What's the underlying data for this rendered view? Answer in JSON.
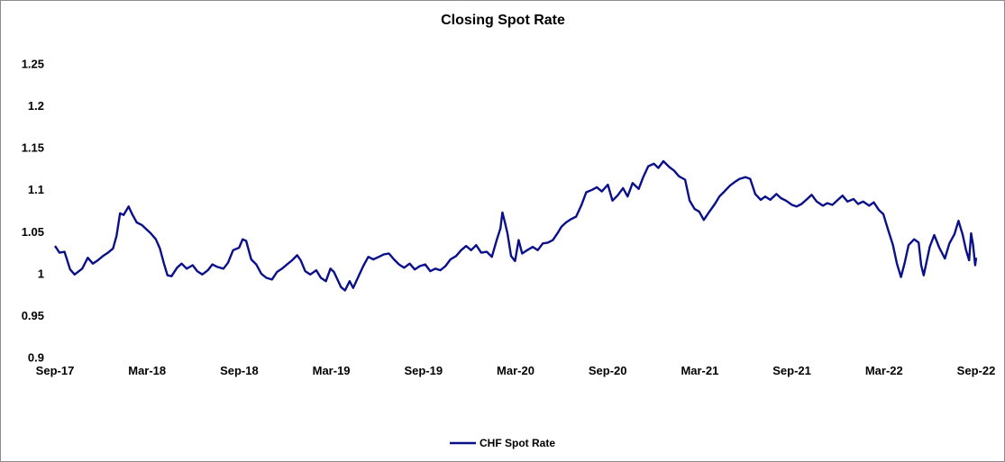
{
  "chart_data": {
    "type": "line",
    "title": "Closing Spot Rate",
    "xlabel": "",
    "ylabel": "",
    "ylim": [
      0.9,
      1.25
    ],
    "yticks": [
      "0.9",
      "0.95",
      "1",
      "1.05",
      "1.1",
      "1.15",
      "1.2",
      "1.25"
    ],
    "xticks": [
      "Sep-17",
      "Mar-18",
      "Sep-18",
      "Mar-19",
      "Sep-19",
      "Mar-20",
      "Sep-20",
      "Mar-21",
      "Sep-21",
      "Mar-22",
      "Sep-22"
    ],
    "xlim": [
      "2017-09-01",
      "2022-09-01"
    ],
    "legend": "bottom",
    "grid": false,
    "series": [
      {
        "name": "CHF Spot Rate",
        "color": "#0a0f8a",
        "points": [
          [
            "2017-09-01",
            1.033
          ],
          [
            "2017-09-10",
            1.025
          ],
          [
            "2017-09-20",
            1.026
          ],
          [
            "2017-10-01",
            1.005
          ],
          [
            "2017-10-10",
            0.999
          ],
          [
            "2017-10-25",
            1.006
          ],
          [
            "2017-11-05",
            1.019
          ],
          [
            "2017-11-15",
            1.012
          ],
          [
            "2017-11-25",
            1.016
          ],
          [
            "2017-12-05",
            1.021
          ],
          [
            "2017-12-15",
            1.025
          ],
          [
            "2017-12-25",
            1.03
          ],
          [
            "2018-01-01",
            1.045
          ],
          [
            "2018-01-08",
            1.072
          ],
          [
            "2018-01-15",
            1.07
          ],
          [
            "2018-01-25",
            1.08
          ],
          [
            "2018-02-01",
            1.071
          ],
          [
            "2018-02-10",
            1.061
          ],
          [
            "2018-02-20",
            1.058
          ],
          [
            "2018-03-01",
            1.053
          ],
          [
            "2018-03-10",
            1.048
          ],
          [
            "2018-03-20",
            1.041
          ],
          [
            "2018-03-28",
            1.03
          ],
          [
            "2018-04-05",
            1.012
          ],
          [
            "2018-04-12",
            0.998
          ],
          [
            "2018-04-20",
            0.997
          ],
          [
            "2018-05-01",
            1.007
          ],
          [
            "2018-05-10",
            1.012
          ],
          [
            "2018-05-20",
            1.006
          ],
          [
            "2018-06-01",
            1.01
          ],
          [
            "2018-06-10",
            1.003
          ],
          [
            "2018-06-20",
            0.999
          ],
          [
            "2018-07-01",
            1.004
          ],
          [
            "2018-07-10",
            1.011
          ],
          [
            "2018-07-20",
            1.008
          ],
          [
            "2018-08-01",
            1.006
          ],
          [
            "2018-08-10",
            1.013
          ],
          [
            "2018-08-20",
            1.028
          ],
          [
            "2018-09-01",
            1.031
          ],
          [
            "2018-09-08",
            1.041
          ],
          [
            "2018-09-15",
            1.039
          ],
          [
            "2018-09-25",
            1.017
          ],
          [
            "2018-10-05",
            1.011
          ],
          [
            "2018-10-15",
            1.0
          ],
          [
            "2018-10-25",
            0.995
          ],
          [
            "2018-11-05",
            0.993
          ],
          [
            "2018-11-15",
            1.002
          ],
          [
            "2018-11-25",
            1.006
          ],
          [
            "2018-12-05",
            1.011
          ],
          [
            "2018-12-15",
            1.016
          ],
          [
            "2018-12-25",
            1.022
          ],
          [
            "2019-01-01",
            1.016
          ],
          [
            "2019-01-10",
            1.003
          ],
          [
            "2019-01-20",
            0.999
          ],
          [
            "2019-02-01",
            1.004
          ],
          [
            "2019-02-10",
            0.995
          ],
          [
            "2019-02-20",
            0.991
          ],
          [
            "2019-03-01",
            1.006
          ],
          [
            "2019-03-08",
            1.002
          ],
          [
            "2019-03-15",
            0.993
          ],
          [
            "2019-03-22",
            0.984
          ],
          [
            "2019-03-30",
            0.98
          ],
          [
            "2019-04-08",
            0.991
          ],
          [
            "2019-04-15",
            0.983
          ],
          [
            "2019-04-25",
            0.996
          ],
          [
            "2019-05-05",
            1.009
          ],
          [
            "2019-05-15",
            1.02
          ],
          [
            "2019-05-25",
            1.017
          ],
          [
            "2019-06-05",
            1.02
          ],
          [
            "2019-06-15",
            1.023
          ],
          [
            "2019-06-25",
            1.024
          ],
          [
            "2019-07-05",
            1.017
          ],
          [
            "2019-07-15",
            1.011
          ],
          [
            "2019-07-25",
            1.007
          ],
          [
            "2019-08-05",
            1.012
          ],
          [
            "2019-08-15",
            1.005
          ],
          [
            "2019-08-25",
            1.009
          ],
          [
            "2019-09-05",
            1.011
          ],
          [
            "2019-09-15",
            1.003
          ],
          [
            "2019-09-25",
            1.006
          ],
          [
            "2019-10-05",
            1.004
          ],
          [
            "2019-10-15",
            1.009
          ],
          [
            "2019-10-25",
            1.017
          ],
          [
            "2019-11-05",
            1.021
          ],
          [
            "2019-11-15",
            1.028
          ],
          [
            "2019-11-25",
            1.033
          ],
          [
            "2019-12-05",
            1.028
          ],
          [
            "2019-12-15",
            1.034
          ],
          [
            "2019-12-25",
            1.025
          ],
          [
            "2020-01-05",
            1.026
          ],
          [
            "2020-01-15",
            1.02
          ],
          [
            "2020-01-25",
            1.041
          ],
          [
            "2020-02-01",
            1.054
          ],
          [
            "2020-02-05",
            1.073
          ],
          [
            "2020-02-10",
            1.061
          ],
          [
            "2020-02-15",
            1.048
          ],
          [
            "2020-02-22",
            1.021
          ],
          [
            "2020-03-01",
            1.015
          ],
          [
            "2020-03-08",
            1.04
          ],
          [
            "2020-03-15",
            1.024
          ],
          [
            "2020-03-25",
            1.028
          ],
          [
            "2020-04-05",
            1.032
          ],
          [
            "2020-04-15",
            1.028
          ],
          [
            "2020-04-25",
            1.036
          ],
          [
            "2020-05-05",
            1.037
          ],
          [
            "2020-05-15",
            1.04
          ],
          [
            "2020-05-25",
            1.049
          ],
          [
            "2020-06-01",
            1.056
          ],
          [
            "2020-06-10",
            1.061
          ],
          [
            "2020-06-20",
            1.065
          ],
          [
            "2020-06-30",
            1.068
          ],
          [
            "2020-07-10",
            1.081
          ],
          [
            "2020-07-20",
            1.097
          ],
          [
            "2020-08-01",
            1.1
          ],
          [
            "2020-08-10",
            1.103
          ],
          [
            "2020-08-20",
            1.098
          ],
          [
            "2020-09-01",
            1.106
          ],
          [
            "2020-09-10",
            1.087
          ],
          [
            "2020-09-20",
            1.093
          ],
          [
            "2020-10-01",
            1.102
          ],
          [
            "2020-10-10",
            1.092
          ],
          [
            "2020-10-20",
            1.108
          ],
          [
            "2020-11-01",
            1.101
          ],
          [
            "2020-11-10",
            1.115
          ],
          [
            "2020-11-20",
            1.128
          ],
          [
            "2020-12-01",
            1.131
          ],
          [
            "2020-12-10",
            1.126
          ],
          [
            "2020-12-20",
            1.134
          ],
          [
            "2021-01-01",
            1.127
          ],
          [
            "2021-01-10",
            1.123
          ],
          [
            "2021-01-20",
            1.116
          ],
          [
            "2021-02-01",
            1.112
          ],
          [
            "2021-02-10",
            1.087
          ],
          [
            "2021-02-20",
            1.077
          ],
          [
            "2021-03-01",
            1.074
          ],
          [
            "2021-03-10",
            1.064
          ],
          [
            "2021-03-20",
            1.073
          ],
          [
            "2021-04-01",
            1.083
          ],
          [
            "2021-04-10",
            1.092
          ],
          [
            "2021-04-20",
            1.098
          ],
          [
            "2021-05-01",
            1.105
          ],
          [
            "2021-05-10",
            1.109
          ],
          [
            "2021-05-20",
            1.113
          ],
          [
            "2021-06-01",
            1.115
          ],
          [
            "2021-06-10",
            1.113
          ],
          [
            "2021-06-20",
            1.095
          ],
          [
            "2021-07-01",
            1.088
          ],
          [
            "2021-07-10",
            1.092
          ],
          [
            "2021-07-20",
            1.088
          ],
          [
            "2021-08-01",
            1.095
          ],
          [
            "2021-08-10",
            1.09
          ],
          [
            "2021-08-20",
            1.087
          ],
          [
            "2021-09-01",
            1.082
          ],
          [
            "2021-09-10",
            1.08
          ],
          [
            "2021-09-20",
            1.083
          ],
          [
            "2021-10-01",
            1.089
          ],
          [
            "2021-10-10",
            1.094
          ],
          [
            "2021-10-20",
            1.086
          ],
          [
            "2021-11-01",
            1.081
          ],
          [
            "2021-11-10",
            1.084
          ],
          [
            "2021-11-20",
            1.082
          ],
          [
            "2021-12-01",
            1.088
          ],
          [
            "2021-12-10",
            1.093
          ],
          [
            "2021-12-20",
            1.086
          ],
          [
            "2022-01-01",
            1.089
          ],
          [
            "2022-01-10",
            1.083
          ],
          [
            "2022-01-20",
            1.086
          ],
          [
            "2022-02-01",
            1.081
          ],
          [
            "2022-02-10",
            1.085
          ],
          [
            "2022-02-20",
            1.076
          ],
          [
            "2022-03-01",
            1.071
          ],
          [
            "2022-03-10",
            1.053
          ],
          [
            "2022-03-20",
            1.034
          ],
          [
            "2022-03-28",
            1.012
          ],
          [
            "2022-04-05",
            0.996
          ],
          [
            "2022-04-12",
            1.012
          ],
          [
            "2022-04-20",
            1.034
          ],
          [
            "2022-05-01",
            1.041
          ],
          [
            "2022-05-10",
            1.037
          ],
          [
            "2022-05-15",
            1.01
          ],
          [
            "2022-05-20",
            0.998
          ],
          [
            "2022-06-01",
            1.032
          ],
          [
            "2022-06-10",
            1.046
          ],
          [
            "2022-06-20",
            1.031
          ],
          [
            "2022-07-01",
            1.018
          ],
          [
            "2022-07-10",
            1.036
          ],
          [
            "2022-07-20",
            1.047
          ],
          [
            "2022-07-28",
            1.063
          ],
          [
            "2022-08-05",
            1.047
          ],
          [
            "2022-08-12",
            1.028
          ],
          [
            "2022-08-18",
            1.016
          ],
          [
            "2022-08-22",
            1.048
          ],
          [
            "2022-08-26",
            1.034
          ],
          [
            "2022-08-30",
            1.01
          ],
          [
            "2022-09-01",
            1.019
          ]
        ]
      }
    ]
  }
}
